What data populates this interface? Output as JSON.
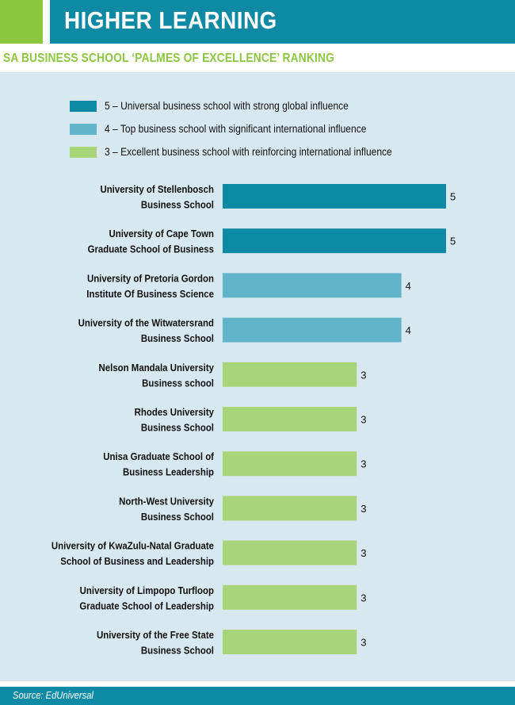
{
  "header": {
    "title": "HIGHER LEARNING",
    "subtitle": "SA BUSINESS SCHOOL ‘PALMES OF EXCELLENCE’ RANKING"
  },
  "legend": [
    {
      "label": "5 – Universal business school with strong global influence",
      "color": "#0e8aa5"
    },
    {
      "label": "4 – Top business school with significant international influence",
      "color": "#62b4cb"
    },
    {
      "label": "3 – Excellent business school with reinforcing international influence",
      "color": "#a8d57a"
    }
  ],
  "footer": {
    "source": "Source: EdUniversal"
  },
  "chart_data": {
    "type": "bar",
    "orientation": "horizontal",
    "categories": [
      [
        "University of Stellenbosch",
        "Business School"
      ],
      [
        "University of Cape Town",
        "Graduate School of Business"
      ],
      [
        "University of Pretoria Gordon",
        "Institute Of Business Science"
      ],
      [
        "University of the Witwatersrand",
        "Business School"
      ],
      [
        "Nelson Mandala University",
        "Business school"
      ],
      [
        "Rhodes University",
        "Business School"
      ],
      [
        "Unisa Graduate School of",
        "Business Leadership"
      ],
      [
        "North-West University",
        "Business School"
      ],
      [
        "University of KwaZulu-Natal Graduate",
        "School of Business and Leadership"
      ],
      [
        "University of Limpopo Turfloop",
        "Graduate School of Leadership"
      ],
      [
        "University of the Free State",
        "Business School"
      ]
    ],
    "values": [
      5,
      5,
      4,
      4,
      3,
      3,
      3,
      3,
      3,
      3,
      3
    ],
    "xlim": [
      0,
      5
    ],
    "colors": {
      "5": "#0e8aa5",
      "4": "#62b4cb",
      "3": "#a8d57a"
    },
    "data_labels": true,
    "grid": false,
    "legend_position": "top"
  }
}
